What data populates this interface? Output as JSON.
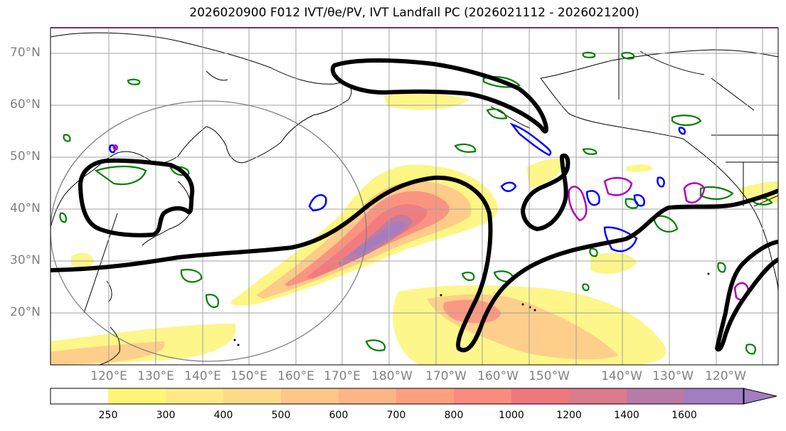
{
  "title": "2026020900 F012 IVT/θe/PV, IVT Landfall PC (2026021112 - 2026021200)",
  "lat_labels": [
    "70°N",
    "60°N",
    "50°N",
    "40°N",
    "30°N",
    "20°N"
  ],
  "lon_labels": [
    "120°E",
    "130°E",
    "140°E",
    "150°E",
    "160°E",
    "170°E",
    "180°W",
    "170°W",
    "160°W",
    "150°W",
    "140°W",
    "130°W",
    "120°W"
  ],
  "colorbar": {
    "ticks": [
      "250",
      "300",
      "400",
      "500",
      "600",
      "700",
      "800",
      "1000",
      "1200",
      "1400",
      "1600"
    ],
    "colors": [
      "#ffffff",
      "#fdf577",
      "#fde986",
      "#fdd98a",
      "#fec689",
      "#feb585",
      "#fea080",
      "#f98b7f",
      "#ef787f",
      "#dc7a8e",
      "#b67ba8",
      "#a27dc2",
      "#a27dc2"
    ]
  },
  "colors": {
    "thick_contour": "#000000",
    "theta_e": "#008000",
    "pv_blue": "#0000ff",
    "pv_magenta": "#b000b8",
    "grid": "#a0a0a0",
    "frame": "#7a2a7a"
  }
}
